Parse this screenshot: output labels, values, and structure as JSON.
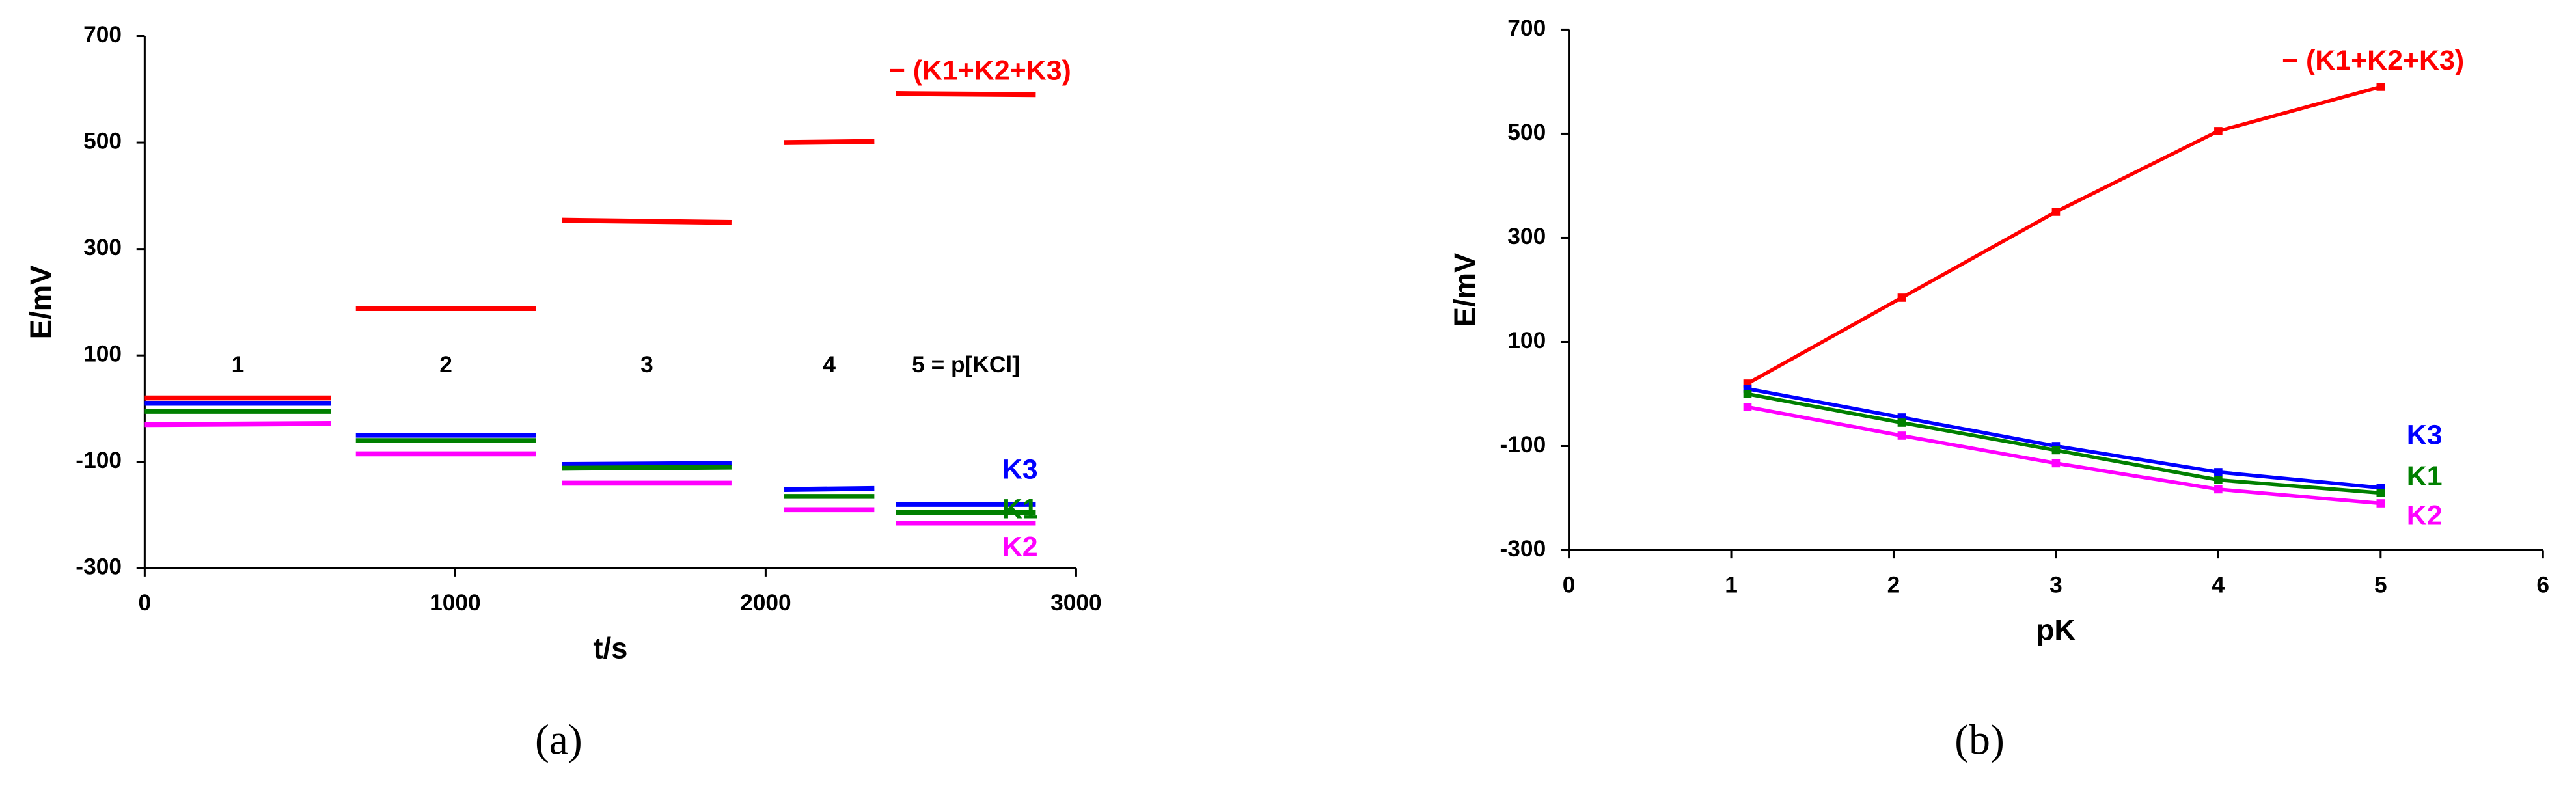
{
  "chart_data": [
    {
      "type": "line",
      "caption": "(a)",
      "x_label": "t/s",
      "y_label": "E/mV",
      "xlim": [
        0,
        3000
      ],
      "xticks": [
        0,
        1000,
        2000,
        3000
      ],
      "ylim": [
        -300,
        700
      ],
      "yticks": [
        -300,
        -100,
        100,
        300,
        500,
        700
      ],
      "x": [
        0,
        600,
        null,
        680,
        1260,
        null,
        1345,
        1890,
        null,
        2060,
        2350,
        null,
        2420,
        2870
      ],
      "series": [
        {
          "name": "− (K1+K2+K3)",
          "color": "#ff0000",
          "values": [
            20,
            20,
            null,
            188,
            188,
            null,
            354,
            350,
            null,
            500,
            502,
            null,
            592,
            590
          ]
        },
        {
          "name": "K3",
          "color": "#0000ff",
          "values": [
            10,
            10,
            null,
            -50,
            -50,
            null,
            -105,
            -103,
            null,
            -152,
            -150,
            null,
            -180,
            -180
          ]
        },
        {
          "name": "K1",
          "color": "#008000",
          "values": [
            -5,
            -5,
            null,
            -60,
            -60,
            null,
            -112,
            -110,
            null,
            -165,
            -165,
            null,
            -195,
            -195
          ]
        },
        {
          "name": "K2",
          "color": "#ff00ff",
          "values": [
            -30,
            -28,
            null,
            -85,
            -85,
            null,
            -140,
            -140,
            null,
            -190,
            -190,
            null,
            -215,
            -215
          ]
        }
      ],
      "annotations": [
        "1",
        "2",
        "3",
        "4",
        "5   = p[KCl]"
      ]
    },
    {
      "type": "line",
      "caption": "(b)",
      "x_label": "pK",
      "y_label": "E/mV",
      "markers": true,
      "xlim": [
        0,
        6
      ],
      "xticks": [
        0,
        1,
        2,
        3,
        4,
        5,
        6
      ],
      "ylim": [
        -300,
        700
      ],
      "yticks": [
        -300,
        -100,
        100,
        300,
        500,
        700
      ],
      "x": [
        1.1,
        2.05,
        3,
        4,
        5
      ],
      "series": [
        {
          "name": "− (K1+K2+K3)",
          "color": "#ff0000",
          "values": [
            20,
            185,
            350,
            505,
            590
          ]
        },
        {
          "name": "K3",
          "color": "#0000ff",
          "values": [
            10,
            -45,
            -100,
            -150,
            -180
          ]
        },
        {
          "name": "K1",
          "color": "#008000",
          "values": [
            0,
            -55,
            -108,
            -165,
            -190
          ]
        },
        {
          "name": "K2",
          "color": "#ff00ff",
          "values": [
            -25,
            -80,
            -133,
            -183,
            -210
          ]
        }
      ]
    }
  ]
}
